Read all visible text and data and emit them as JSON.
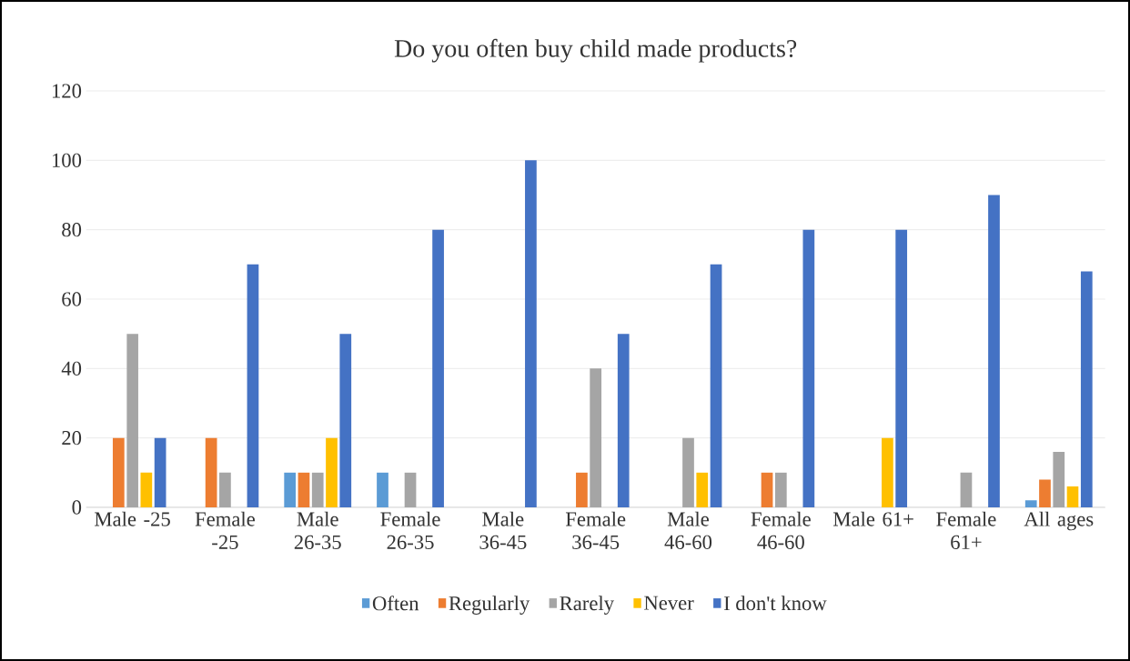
{
  "chart_data": {
    "type": "bar",
    "title": "Do you often buy child made products?",
    "categories": [
      "Male -25",
      "Female -25",
      "Male 26-35",
      "Female 26-35",
      "Male 36-45",
      "Female 36-45",
      "Male 46-60",
      "Female 46-60",
      "Male 61+",
      "Female 61+",
      "All ages"
    ],
    "series": [
      {
        "name": "Often",
        "color": "#5b9bd5",
        "values": [
          0,
          0,
          10,
          10,
          0,
          0,
          0,
          0,
          0,
          0,
          2
        ]
      },
      {
        "name": "Regularly",
        "color": "#ed7d31",
        "values": [
          20,
          20,
          10,
          0,
          0,
          10,
          0,
          10,
          0,
          0,
          8
        ]
      },
      {
        "name": "Rarely",
        "color": "#a5a5a5",
        "values": [
          50,
          10,
          10,
          10,
          0,
          40,
          20,
          10,
          0,
          10,
          16
        ]
      },
      {
        "name": "Never",
        "color": "#ffc000",
        "values": [
          10,
          0,
          20,
          0,
          0,
          0,
          10,
          0,
          20,
          0,
          6
        ]
      },
      {
        "name": "I don't know",
        "color": "#4472c4",
        "values": [
          20,
          70,
          50,
          80,
          100,
          50,
          70,
          80,
          80,
          90,
          68
        ]
      }
    ],
    "ylim": [
      0,
      120
    ],
    "yticks": [
      0,
      20,
      40,
      60,
      80,
      100,
      120
    ],
    "grid": "y",
    "legend": "bottom"
  }
}
